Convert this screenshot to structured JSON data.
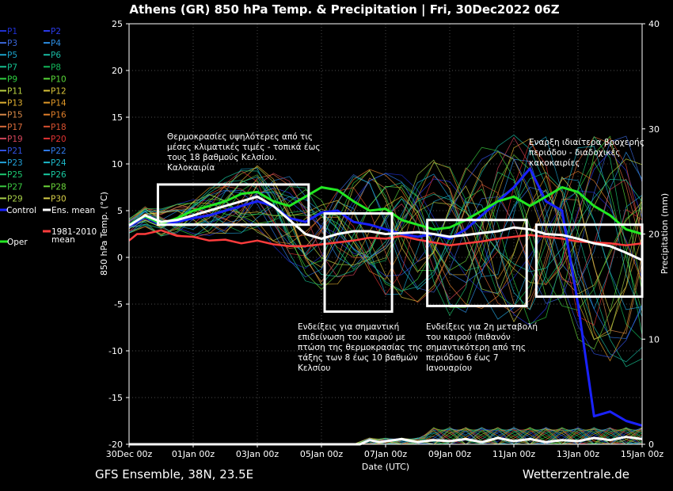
{
  "chart_data": {
    "type": "line",
    "title": "Athens  (GR)  850 hPa Temp. & Precipitation | Fri, 30Dec2022 06Z",
    "ylabel": "850 hPa Temp. (°C)",
    "ylabel_right": "Precipitation (mm)",
    "xlabel": "Date (UTC)",
    "ylim": [
      -20,
      25
    ],
    "ylim_right": [
      0,
      40
    ],
    "xlim_days": [
      0,
      16
    ],
    "grid": true,
    "legend_placement": "left",
    "x_ticks": [
      "30Dec 00z",
      "01Jan 00z",
      "03Jan 00z",
      "05Jan 00z",
      "07Jan 00z",
      "09Jan 00z",
      "11Jan 00z",
      "13Jan 00z",
      "15Jan 00z"
    ],
    "y_ticks": [
      25,
      20,
      15,
      10,
      5,
      0,
      -5,
      -10,
      -15,
      -20
    ],
    "y_ticks_right": [
      40,
      30,
      20,
      10,
      0
    ],
    "footer_left": "GFS Ensemble, 38N, 23.5E",
    "footer_right": "Wetterzentrale.de",
    "legend": [
      {
        "label": "P1",
        "color": "#1f2fd0"
      },
      {
        "label": "P2",
        "color": "#2a3ae8"
      },
      {
        "label": "P3",
        "color": "#3a66d8"
      },
      {
        "label": "P4",
        "color": "#2c8ce0"
      },
      {
        "label": "P5",
        "color": "#1aa0c8"
      },
      {
        "label": "P6",
        "color": "#19b8a0"
      },
      {
        "label": "P7",
        "color": "#16c090"
      },
      {
        "label": "P8",
        "color": "#12b85a"
      },
      {
        "label": "P9",
        "color": "#2ed040"
      },
      {
        "label": "P10",
        "color": "#58d838"
      },
      {
        "label": "P11",
        "color": "#b8d040"
      },
      {
        "label": "P12",
        "color": "#d8c238"
      },
      {
        "label": "P13",
        "color": "#e0b030"
      },
      {
        "label": "P14",
        "color": "#e09828"
      },
      {
        "label": "P15",
        "color": "#d88848"
      },
      {
        "label": "P16",
        "color": "#e07e2a"
      },
      {
        "label": "P17",
        "color": "#d86a3a"
      },
      {
        "label": "P18",
        "color": "#d85030"
      },
      {
        "label": "P19",
        "color": "#d04458"
      },
      {
        "label": "P20",
        "color": "#e03232"
      },
      {
        "label": "P21",
        "color": "#3050e0"
      },
      {
        "label": "P22",
        "color": "#2f78e8"
      },
      {
        "label": "P23",
        "color": "#22a0d8"
      },
      {
        "label": "P24",
        "color": "#1cb8c8"
      },
      {
        "label": "P25",
        "color": "#1cc870"
      },
      {
        "label": "P26",
        "color": "#18c8a0"
      },
      {
        "label": "P27",
        "color": "#3ac840"
      },
      {
        "label": "P28",
        "color": "#6ad43a"
      },
      {
        "label": "P29",
        "color": "#a8d048"
      },
      {
        "label": "P30",
        "color": "#d8d048"
      },
      {
        "label": "Control",
        "color": "#1a22ff"
      },
      {
        "label": "Ens. mean",
        "color": "#ffffff"
      },
      {
        "label": "Oper",
        "color": "#22e822"
      },
      {
        "label": "1981-2010 mean",
        "color": "#ff3c3c"
      }
    ],
    "series": [
      {
        "name": "Ens. mean",
        "color": "#ffffff",
        "x": [
          0,
          0.5,
          1,
          1.5,
          2,
          2.5,
          3,
          3.5,
          4,
          4.5,
          5,
          5.5,
          6,
          6.5,
          7,
          7.5,
          8,
          8.5,
          9,
          9.5,
          10,
          10.5,
          11,
          11.5,
          12,
          12.5,
          13,
          13.5,
          14,
          14.5,
          15,
          15.5,
          16
        ],
        "y": [
          3.4,
          4.5,
          3.8,
          4,
          4.5,
          5,
          5.5,
          6,
          6.5,
          5.5,
          4,
          2.5,
          2,
          2.5,
          2.8,
          2.8,
          2.5,
          2.6,
          2.7,
          2.5,
          2.2,
          2.4,
          2.6,
          2.8,
          3.2,
          3,
          2.5,
          2.4,
          2,
          1.5,
          1.2,
          0.5,
          -0.3
        ]
      },
      {
        "name": "Oper",
        "color": "#22e822",
        "x": [
          0,
          0.5,
          1,
          1.5,
          2,
          2.5,
          3,
          3.5,
          4,
          4.5,
          5,
          5.5,
          6,
          6.5,
          7,
          7.5,
          8,
          8.5,
          9,
          9.5,
          10,
          10.5,
          11,
          11.5,
          12,
          12.5,
          13,
          13.5,
          14,
          14.5,
          15,
          15.5,
          16
        ],
        "y": [
          3.5,
          4.4,
          3.6,
          4.2,
          5,
          5.5,
          6,
          6.8,
          7,
          6,
          5.5,
          6.5,
          7.5,
          7.2,
          6,
          5,
          5.2,
          4,
          3.5,
          3,
          3.2,
          4,
          5,
          6,
          6.5,
          5.5,
          6.5,
          7.5,
          7,
          5.5,
          4.5,
          3,
          2.5
        ]
      },
      {
        "name": "Control",
        "color": "#1a22ff",
        "x": [
          0,
          0.5,
          1,
          1.5,
          2,
          2.5,
          3,
          3.5,
          4,
          4.5,
          5,
          5.5,
          6,
          6.5,
          7,
          7.5,
          8,
          8.5,
          9,
          9.5,
          10,
          10.5,
          11,
          11.5,
          12,
          12.5,
          13,
          13.5,
          14,
          14.5,
          15,
          15.5,
          16
        ],
        "y": [
          3.3,
          4.3,
          3.5,
          3.8,
          4.2,
          4.5,
          5,
          5.5,
          6,
          5.5,
          4.2,
          3.8,
          4.8,
          5,
          3.8,
          3.5,
          3,
          2.5,
          2.2,
          2.5,
          2,
          3,
          4.5,
          6,
          7.5,
          9.5,
          6,
          5,
          -5,
          -17,
          -16.5,
          -17.5,
          -18
        ]
      },
      {
        "name": "1981-2010 mean",
        "color": "#ff3c3c",
        "x": [
          0,
          0.25,
          0.5,
          1,
          1.5,
          2,
          2.5,
          3,
          3.5,
          4,
          4.5,
          5,
          5.5,
          6,
          6.5,
          7,
          7.5,
          8,
          8.5,
          9,
          9.5,
          10,
          10.5,
          11,
          11.5,
          12,
          12.5,
          13,
          13.5,
          14,
          14.5,
          15,
          15.5,
          16
        ],
        "y": [
          1.8,
          2.5,
          2.5,
          2.9,
          2.3,
          2.2,
          1.8,
          1.9,
          1.5,
          1.8,
          1.4,
          1.2,
          1.2,
          1.4,
          1.6,
          1.8,
          2.1,
          2.0,
          2.3,
          1.9,
          1.6,
          1.3,
          1.5,
          1.7,
          2.0,
          2.2,
          2.4,
          2.2,
          2.0,
          1.7,
          1.6,
          1.5,
          1.3,
          1.5
        ]
      },
      {
        "name": "Precip. ens. mean",
        "color": "#ffffff",
        "axis": "right",
        "x": [
          0,
          7.2,
          7.5,
          7.8,
          8.5,
          9,
          9.5,
          10,
          10.5,
          11,
          11.5,
          12,
          12.5,
          13,
          13.5,
          14,
          14.5,
          15,
          15.5,
          16
        ],
        "y": [
          0,
          0,
          0.4,
          0.2,
          0.5,
          0.2,
          0.4,
          0.3,
          0.5,
          0.2,
          0.6,
          0.3,
          0.5,
          0.2,
          0.4,
          0.3,
          0.6,
          0.4,
          0.7,
          0.5
        ]
      }
    ],
    "annotations": [
      {
        "text": "Θερμοκρασίες υψηλότερες από τις\nμέσες κλιματικές τιμές - τοπικά έως\nτους 18 βαθμούς Κελσίου.\nΚαλοκαιρία",
        "box": {
          "x0": 0.9,
          "x1": 5.6,
          "y0": 3.5,
          "y1": 7.8
        }
      },
      {
        "text": "Ενδείξεις για σημαντική\nεπιδείνωση του καιρού με\nπτώση της θερμοκρασίας της\nτάξης των 8 έως 10 βαθμών\nΚελσίου",
        "box": {
          "x0": 6.1,
          "x1": 8.2,
          "y0": -5.8,
          "y1": 4.7
        }
      },
      {
        "text": "Ενδείξεις για 2η μεταβολή\nτου καιρού (πιθανόν\nσημαντικότερη από της\nπεριόδου 6 έως 7\nΙανουαρίου",
        "box": {
          "x0": 9.3,
          "x1": 12.4,
          "y0": -5.2,
          "y1": 4.0
        }
      },
      {
        "text": "Εναρξη ιδιαίτερα βροχερής\nπεριόδου - διαδοχικές\nκακοκαιρίες",
        "box": {
          "x0": 12.7,
          "x1": 16.0,
          "y0": -4.2,
          "y1": 3.5
        }
      }
    ]
  }
}
